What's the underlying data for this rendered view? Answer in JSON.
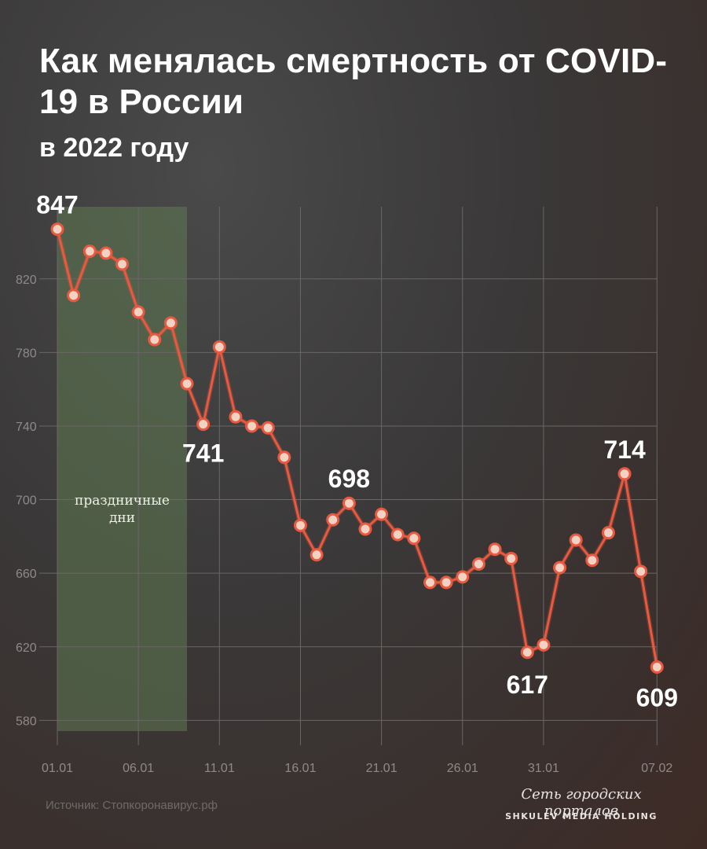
{
  "header": {
    "title": "Как менялась смертность от COVID-19 в России",
    "subtitle": "в 2022 году"
  },
  "footer": {
    "source": "Источник: Стопкоронавирус.рф",
    "brand_line1": "Сеть городских порталов",
    "brand_line2": "SHKULEV MEDIA HOLDING"
  },
  "colors": {
    "line": "#e8593f",
    "marker_fill": "#f3d2c4",
    "holiday_band": "#5f7a52",
    "grid": "#6a6765"
  },
  "chart_data": {
    "type": "line",
    "title": "Как менялась смертность от COVID-19 в России",
    "subtitle": "в 2022 году",
    "x_ticks": [
      "01.01",
      "06.01",
      "11.01",
      "16.01",
      "21.01",
      "26.01",
      "31.01",
      "07.02"
    ],
    "y_ticks": [
      580,
      620,
      660,
      700,
      740,
      780,
      820
    ],
    "ylim": [
      575,
      860
    ],
    "grid": true,
    "highlight_band": {
      "from": "01.01",
      "to": "09.01",
      "label_lines": [
        "праздничные",
        "дни"
      ]
    },
    "series": [
      {
        "x": [
          "01.01",
          "02.01",
          "03.01",
          "04.01",
          "05.01",
          "06.01",
          "07.01",
          "08.01",
          "09.01",
          "10.01",
          "11.01",
          "12.01",
          "13.01",
          "14.01",
          "15.01",
          "16.01",
          "17.01",
          "18.01",
          "19.01",
          "20.01",
          "21.01",
          "22.01",
          "23.01",
          "24.01",
          "25.01",
          "26.01",
          "27.01",
          "28.01",
          "29.01",
          "30.01",
          "31.01",
          "01.02",
          "02.02",
          "03.02",
          "04.02",
          "05.02",
          "06.02",
          "07.02"
        ],
        "values": [
          847,
          811,
          835,
          834,
          828,
          802,
          787,
          796,
          763,
          741,
          783,
          745,
          740,
          739,
          723,
          686,
          670,
          689,
          698,
          684,
          692,
          681,
          679,
          655,
          655,
          658,
          665,
          673,
          668,
          617,
          621,
          663,
          678,
          667,
          682,
          714,
          661,
          609
        ]
      }
    ],
    "annotations": [
      {
        "x": "01.01",
        "label": "847"
      },
      {
        "x": "10.01",
        "label": "741"
      },
      {
        "x": "19.01",
        "label": "698"
      },
      {
        "x": "30.01",
        "label": "617"
      },
      {
        "x": "05.02",
        "label": "714"
      },
      {
        "x": "07.02",
        "label": "609"
      }
    ]
  }
}
